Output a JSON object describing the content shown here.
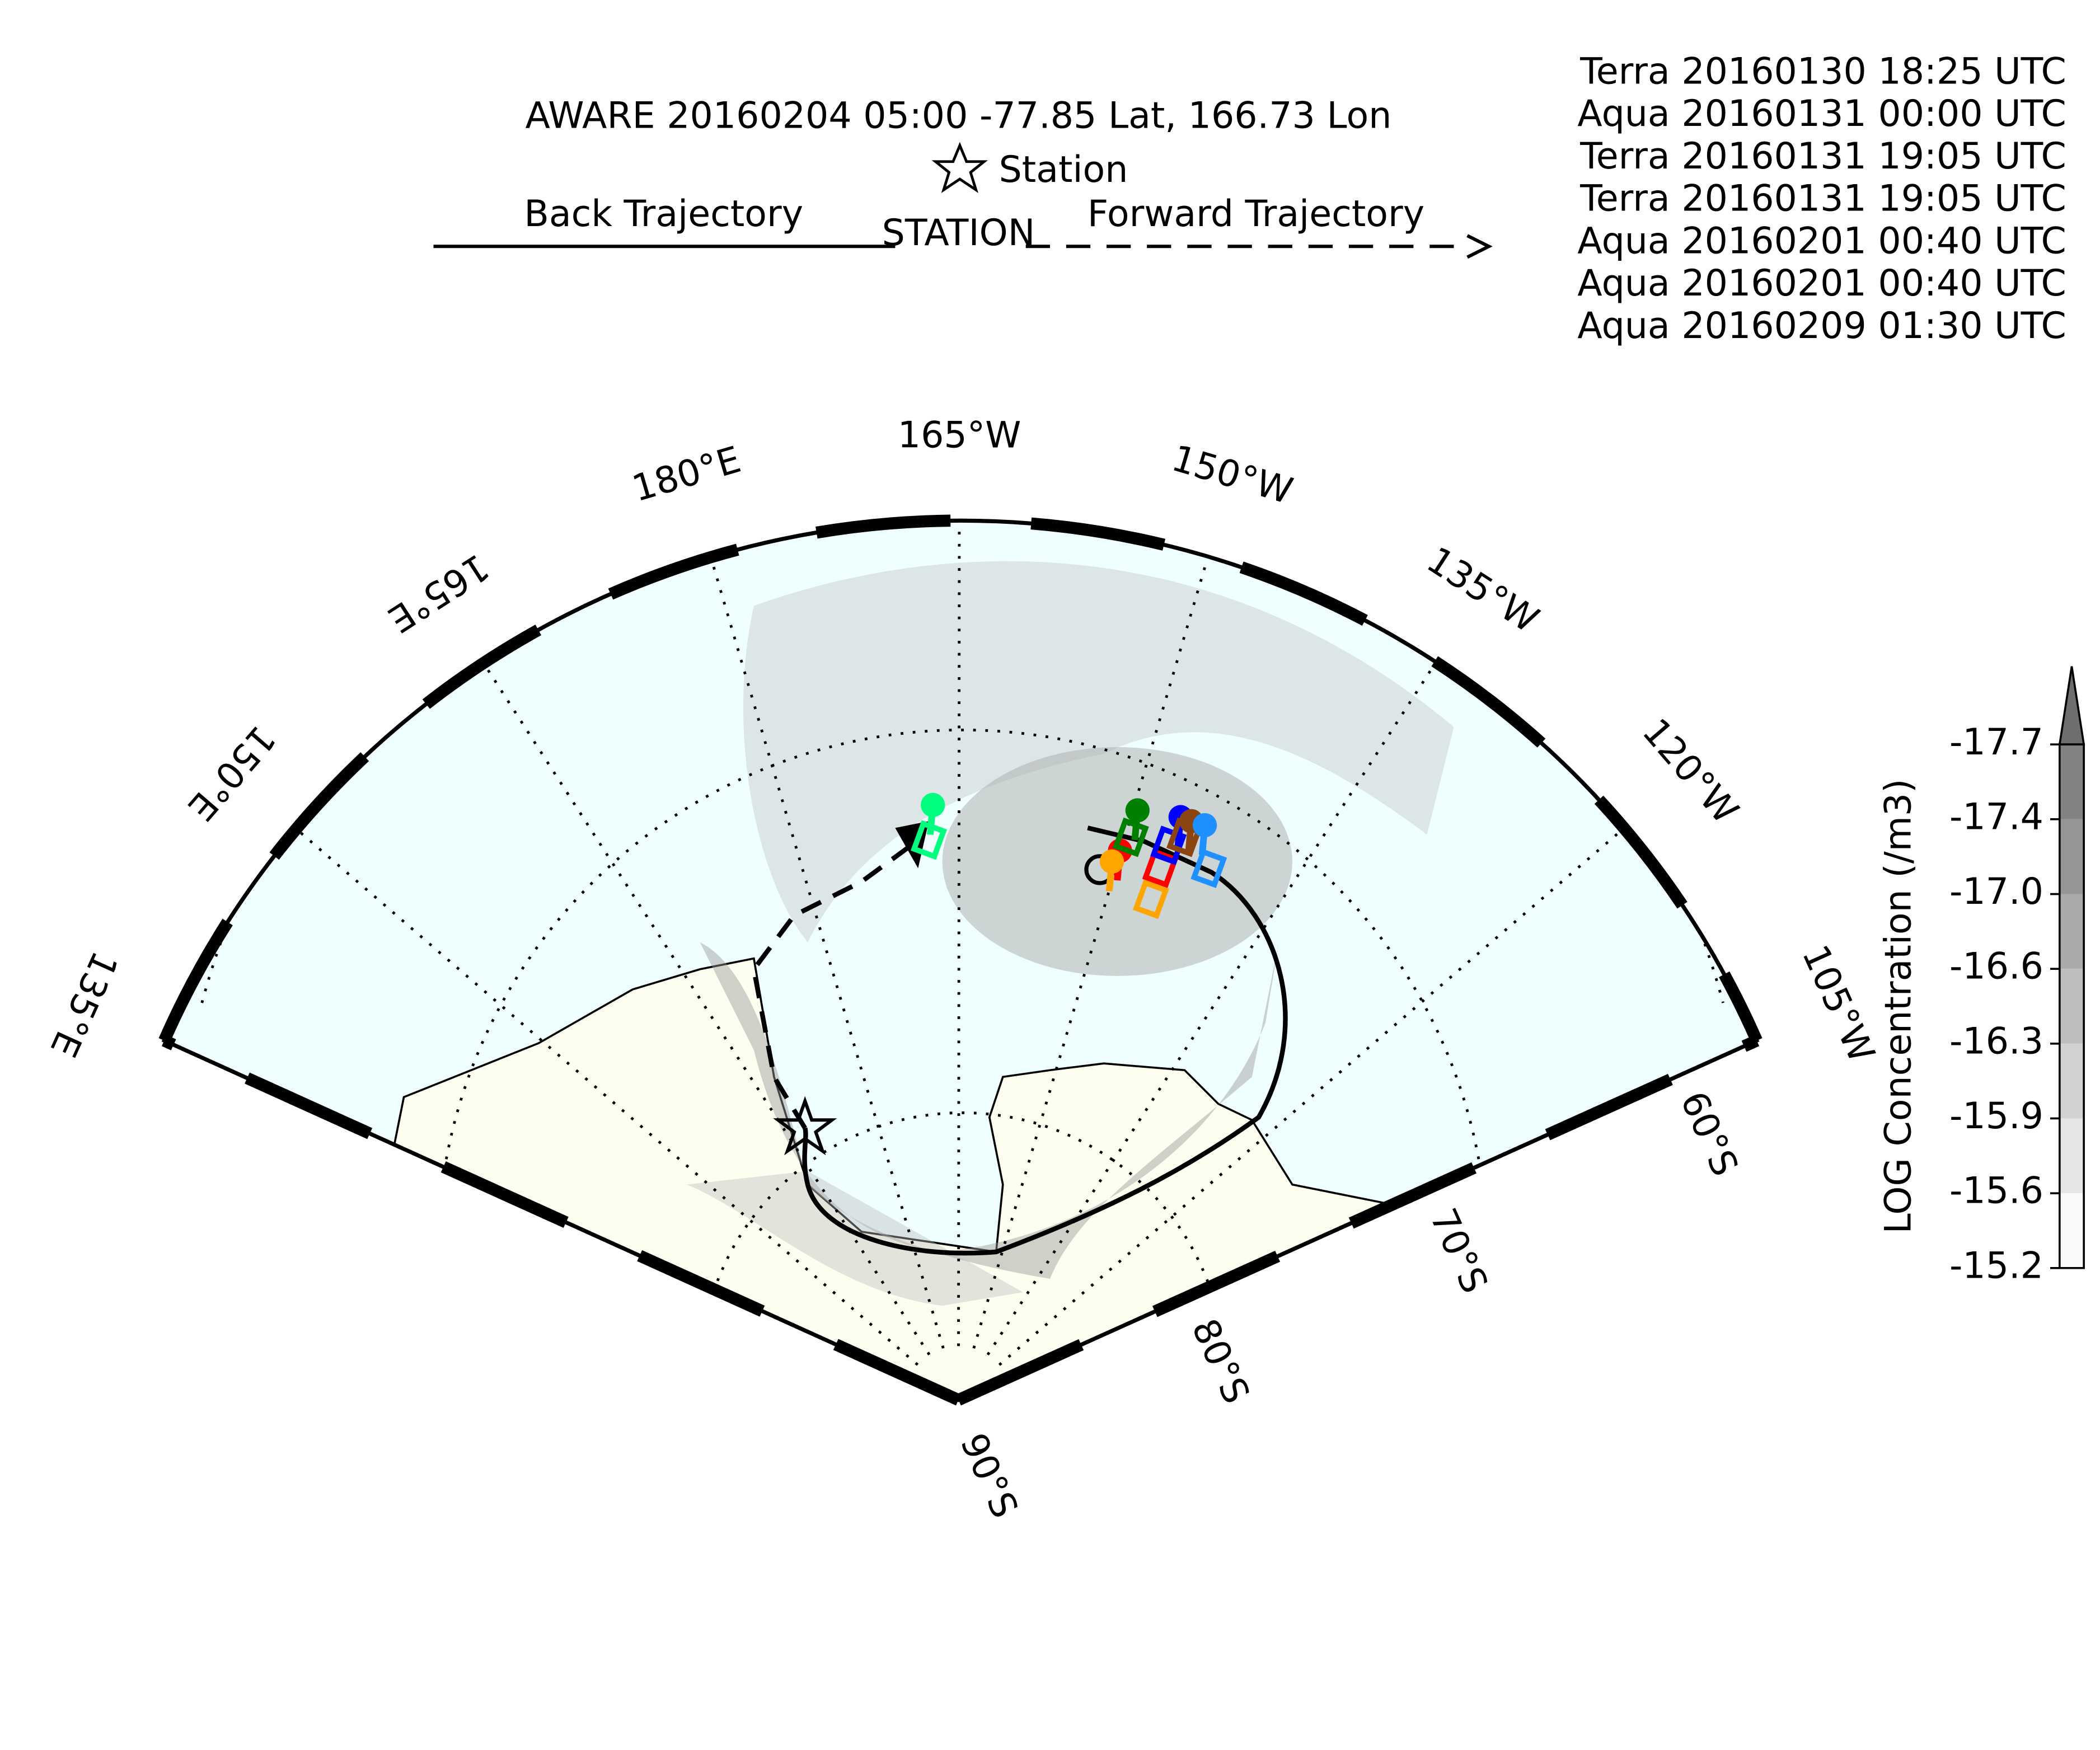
{
  "chart_data": {
    "type": "map",
    "title": "AWARE 20160204 05:00  -77.85 Lat,  166.73 Lon",
    "station_label": "Station",
    "back_label": "Back Trajectory",
    "station_text": "STATION",
    "forward_label": "Forward Trajectory",
    "series": [
      {
        "name": "Terra 20160130 18:25 UTC",
        "color": "#ff0000"
      },
      {
        "name": "Aqua 20160131 00:00 UTC",
        "color": "#ffa500"
      },
      {
        "name": "Terra 20160131 19:05 UTC",
        "color": "#008000"
      },
      {
        "name": "Terra 20160131 19:05 UTC",
        "color": "#0000ff"
      },
      {
        "name": "Aqua 20160201 00:40 UTC",
        "color": "#8b4513"
      },
      {
        "name": "Aqua 20160201 00:40 UTC",
        "color": "#1e90ff"
      },
      {
        "name": "Aqua 20160209 01:30 UTC",
        "color": "#00ff7f"
      }
    ],
    "lon_labels": [
      "135°E",
      "150°E",
      "165°E",
      "180°E",
      "165°W",
      "150°W",
      "135°W",
      "120°W",
      "105°W"
    ],
    "lat_labels": [
      "60°S",
      "70°S",
      "80°S",
      "90°S"
    ],
    "colorbar": {
      "label": "LOG Concentration (/m3)",
      "ticks": [
        -15.2,
        -15.6,
        -15.9,
        -16.3,
        -16.6,
        {
          "value": -17,
          "label": "-17.0"
        },
        -17.4,
        -17.7
      ]
    }
  }
}
